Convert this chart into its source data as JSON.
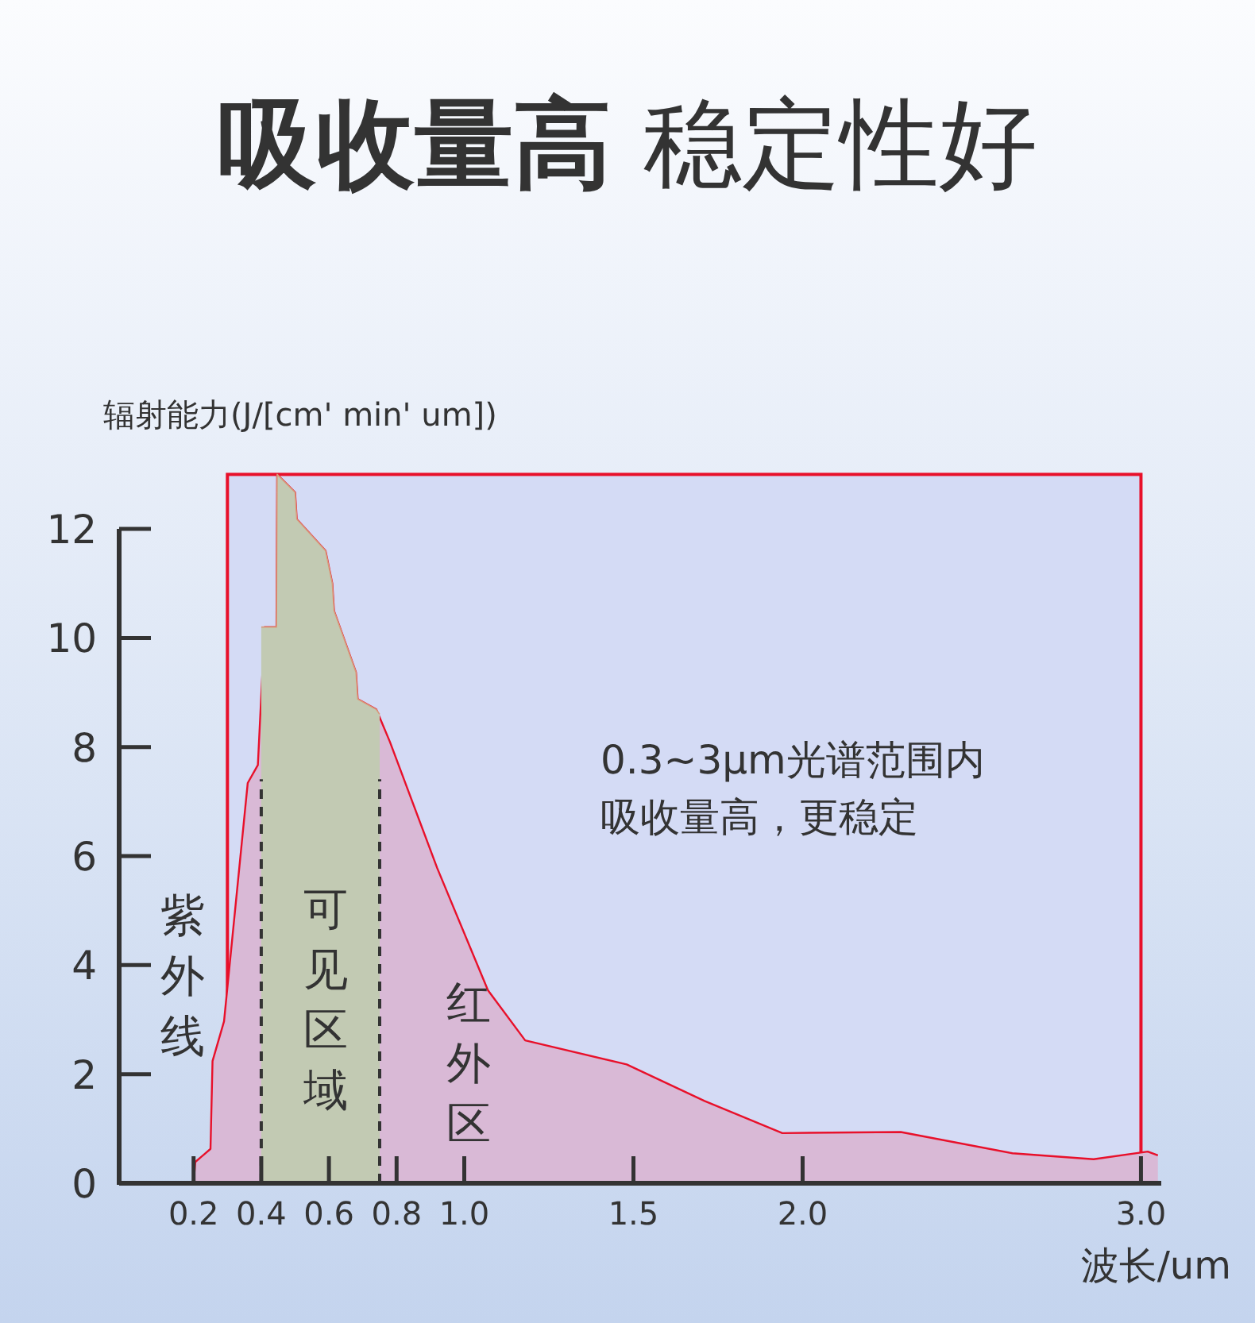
{
  "chart_data": {
    "type": "area",
    "title": "**吸收量高** 稳定性好",
    "xlabel": "波长/um",
    "ylabel": "辐射能力(J/[cm' min' um])",
    "xlim": [
      -0.02,
      3.06
    ],
    "ylim": [
      0,
      13
    ],
    "xticks": [
      0.2,
      0.4,
      0.6,
      0.8,
      {
        "value": 1.0,
        "label": "1.0"
      },
      1.5,
      {
        "value": 2.0,
        "label": "2.0"
      },
      {
        "value": 3.0,
        "label": "3.0"
      }
    ],
    "yticks": [
      0,
      2,
      4,
      6,
      8,
      10,
      12
    ],
    "grid": false,
    "bands": [
      {
        "axis": "x",
        "from": 0.3,
        "to": 3.0,
        "color": "#d4dbf5"
      }
    ],
    "ref_lines": [
      {
        "axis": "x",
        "value": 0.4,
        "line_style": "dashed",
        "color": "#333333"
      },
      {
        "axis": "x",
        "value": 0.75,
        "line_style": "dashed",
        "color": "#333333"
      }
    ],
    "series": [
      {
        "color": "#d9b9d6",
        "x": [
          0.2,
          0.205,
          0.25,
          0.256,
          0.29,
          0.36,
          0.39,
          0.41,
          0.445,
          0.447,
          0.5,
          0.505,
          0.59,
          0.61,
          0.615,
          0.68,
          0.685,
          0.74,
          0.78,
          0.92,
          1.07,
          1.18,
          1.48,
          1.71,
          1.94,
          2.29,
          2.62,
          2.86,
          3.02,
          3.05
        ],
        "values": [
          0,
          0.39,
          0.63,
          2.24,
          2.97,
          7.34,
          7.67,
          10.2,
          10.2,
          13.0,
          12.67,
          12.18,
          11.6,
          11.0,
          10.5,
          9.37,
          8.88,
          8.69,
          8.1,
          5.78,
          3.54,
          2.62,
          2.18,
          1.51,
          0.92,
          0.94,
          0.55,
          0.44,
          0.58,
          0.51
        ]
      },
      {
        "color": "#c2cab3",
        "x": [
          0.4,
          0.445,
          0.447,
          0.5,
          0.505,
          0.59,
          0.61,
          0.615,
          0.68,
          0.685,
          0.74,
          0.75
        ],
        "values": [
          10.2,
          10.2,
          13.0,
          12.67,
          12.18,
          11.6,
          11.0,
          10.5,
          9.37,
          8.88,
          8.69,
          8.6
        ]
      }
    ],
    "annotations": [
      "紫外线",
      "可见区域",
      "红外区",
      "0.3~3µm光谱范围内",
      "吸收量高，更稳定"
    ]
  }
}
